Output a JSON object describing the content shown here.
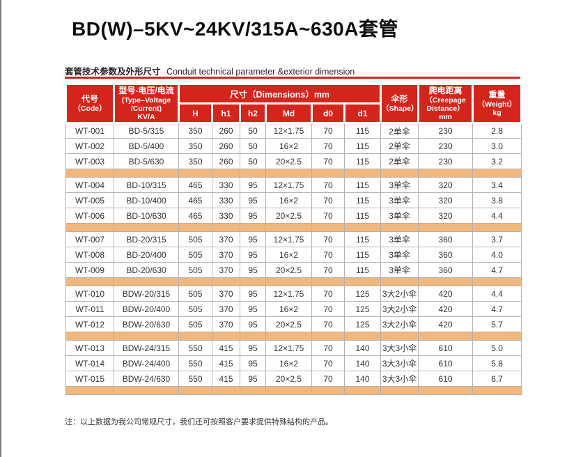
{
  "page": {
    "title": "BD(W)–5KV~24KV/315A~630A套管",
    "section_title_zh": "套管技术参数及外形尺寸",
    "section_title_en": "Conduit technical parameter &exterior dimension",
    "note": "注：以上数据为我公司常规尺寸，我们还可按照客户要求提供特殊结构的产品。"
  },
  "colors": {
    "header_red": "#d4251c",
    "separator_tan": "#f1b77c"
  },
  "table": {
    "header": {
      "code_zh": "代号",
      "code_sub": "（Code）",
      "type_zh": "型号-电压/电流",
      "type_sub": "(Type–Voltage\n/Current)\nKV/A",
      "dimensions": "尺寸（Dimensions）mm",
      "dim_cols": [
        "H",
        "h1",
        "h2",
        "Md",
        "d0",
        "d1"
      ],
      "shape_zh": "伞形",
      "shape_sub": "（Shape）",
      "creepage_zh": "爬电距离",
      "creepage_sub": "（Creepage\nDistance）\nmm",
      "weight_zh": "重量",
      "weight_sub": "（Weight）\nkg"
    },
    "groups": [
      {
        "rows": [
          [
            "WT-001",
            "BD-5/315",
            "350",
            "260",
            "50",
            "12×1.75",
            "70",
            "115",
            "2单伞",
            "230",
            "2.8"
          ],
          [
            "WT-002",
            "BD-5/400",
            "350",
            "260",
            "50",
            "16×2",
            "70",
            "115",
            "2单伞",
            "230",
            "3.0"
          ],
          [
            "WT-003",
            "BD-5/630",
            "350",
            "260",
            "50",
            "20×2.5",
            "70",
            "115",
            "2单伞",
            "230",
            "3.2"
          ]
        ]
      },
      {
        "rows": [
          [
            "WT-004",
            "BD-10/315",
            "465",
            "330",
            "95",
            "12×1.75",
            "70",
            "115",
            "3单伞",
            "320",
            "3.4"
          ],
          [
            "WT-005",
            "BD-10/400",
            "465",
            "330",
            "95",
            "16×2",
            "70",
            "115",
            "3单伞",
            "320",
            "3.8"
          ],
          [
            "WT-006",
            "BD-10/630",
            "465",
            "330",
            "95",
            "20×2.5",
            "70",
            "115",
            "3单伞",
            "320",
            "4.4"
          ]
        ]
      },
      {
        "rows": [
          [
            "WT-007",
            "BD-20/315",
            "505",
            "370",
            "95",
            "12×1.75",
            "70",
            "115",
            "3单伞",
            "360",
            "3.7"
          ],
          [
            "WT-008",
            "BD-20/400",
            "505",
            "370",
            "95",
            "16×2",
            "70",
            "115",
            "3单伞",
            "360",
            "4.0"
          ],
          [
            "WT-009",
            "BD-20/630",
            "505",
            "370",
            "95",
            "20×2.5",
            "70",
            "115",
            "3单伞",
            "360",
            "4.7"
          ]
        ]
      },
      {
        "rows": [
          [
            "WT-010",
            "BDW-20/315",
            "505",
            "370",
            "95",
            "12×1.75",
            "70",
            "125",
            "3大2小伞",
            "420",
            "4.4"
          ],
          [
            "WT-011",
            "BDW-20/400",
            "505",
            "370",
            "95",
            "16×2",
            "70",
            "125",
            "3大2小伞",
            "420",
            "4.7"
          ],
          [
            "WT-012",
            "BDW-20/630",
            "505",
            "370",
            "95",
            "20×2.5",
            "70",
            "125",
            "3大2小伞",
            "420",
            "5.7"
          ]
        ]
      },
      {
        "rows": [
          [
            "WT-013",
            "BDW-24/315",
            "550",
            "415",
            "95",
            "12×1.75",
            "70",
            "140",
            "3大3小伞",
            "610",
            "5.0"
          ],
          [
            "WT-014",
            "BDW-24/400",
            "550",
            "415",
            "95",
            "16×2",
            "70",
            "140",
            "3大3小伞",
            "610",
            "5.8"
          ],
          [
            "WT-015",
            "BDW-24/630",
            "550",
            "415",
            "95",
            "20×2.5",
            "70",
            "140",
            "3大3小伞",
            "610",
            "6.7"
          ]
        ]
      }
    ]
  }
}
